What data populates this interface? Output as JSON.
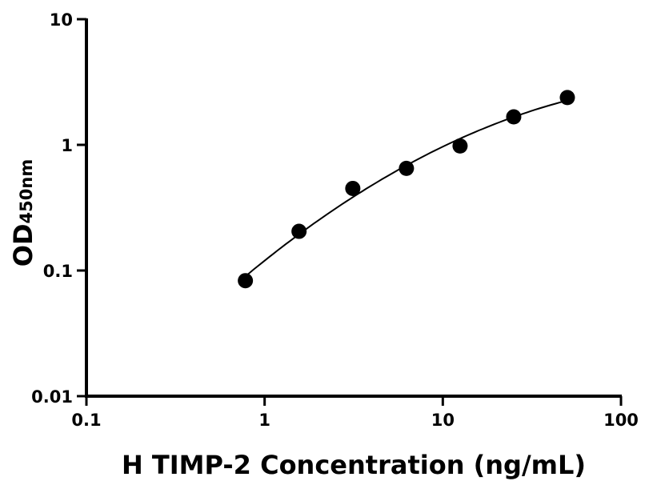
{
  "chart_data": {
    "type": "scatter",
    "xlabel": "H TIMP-2 Concentration (ng/mL)",
    "ylabel": "OD",
    "ylabel_subscript": "450nm",
    "x_scale": "log",
    "y_scale": "log",
    "xlim": [
      0.1,
      100
    ],
    "ylim": [
      0.01,
      10
    ],
    "x_ticks": [
      "0.1",
      "1",
      "10",
      "100"
    ],
    "y_ticks": [
      "0.01",
      "0.1",
      "1",
      "10"
    ],
    "grid": false,
    "fit_curve": true,
    "colors": {
      "points": "#000000",
      "curve": "#000000"
    },
    "points": [
      {
        "x": 0.78,
        "y": 0.083
      },
      {
        "x": 1.56,
        "y": 0.205
      },
      {
        "x": 3.125,
        "y": 0.45
      },
      {
        "x": 6.25,
        "y": 0.65
      },
      {
        "x": 12.5,
        "y": 0.98
      },
      {
        "x": 25,
        "y": 1.67
      },
      {
        "x": 50,
        "y": 2.38
      }
    ]
  }
}
